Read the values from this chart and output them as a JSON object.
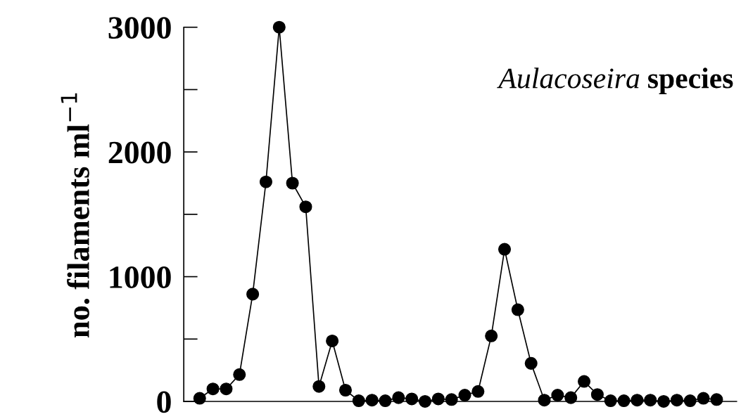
{
  "chart_data": {
    "type": "line",
    "title": "Aulacoseira species",
    "ylabel": "no. filaments ml$^{−1}$",
    "categories": [
      null,
      null,
      null,
      null,
      null,
      null,
      null,
      null,
      null,
      null,
      null,
      null,
      null,
      null,
      null,
      null,
      null,
      null,
      null,
      null,
      null,
      null,
      null,
      null,
      null,
      null,
      null,
      null,
      null,
      null,
      null,
      null,
      null,
      null,
      null,
      null,
      null,
      null,
      null,
      null
    ],
    "series": [
      {
        "color": "#000000",
        "values": [
          25,
          100,
          100,
          215,
          860,
          1760,
          3000,
          1750,
          1560,
          120,
          485,
          90,
          5,
          10,
          5,
          30,
          20,
          0,
          20,
          15,
          50,
          80,
          525,
          1220,
          735,
          305,
          10,
          50,
          30,
          160,
          55,
          5,
          5,
          10,
          10,
          0,
          10,
          5,
          25,
          15
        ]
      }
    ],
    "ylim": [
      0,
      3000
    ],
    "yticks": [
      0,
      1000,
      2000,
      3000
    ],
    "marker": "circle",
    "line_style": "solid"
  }
}
